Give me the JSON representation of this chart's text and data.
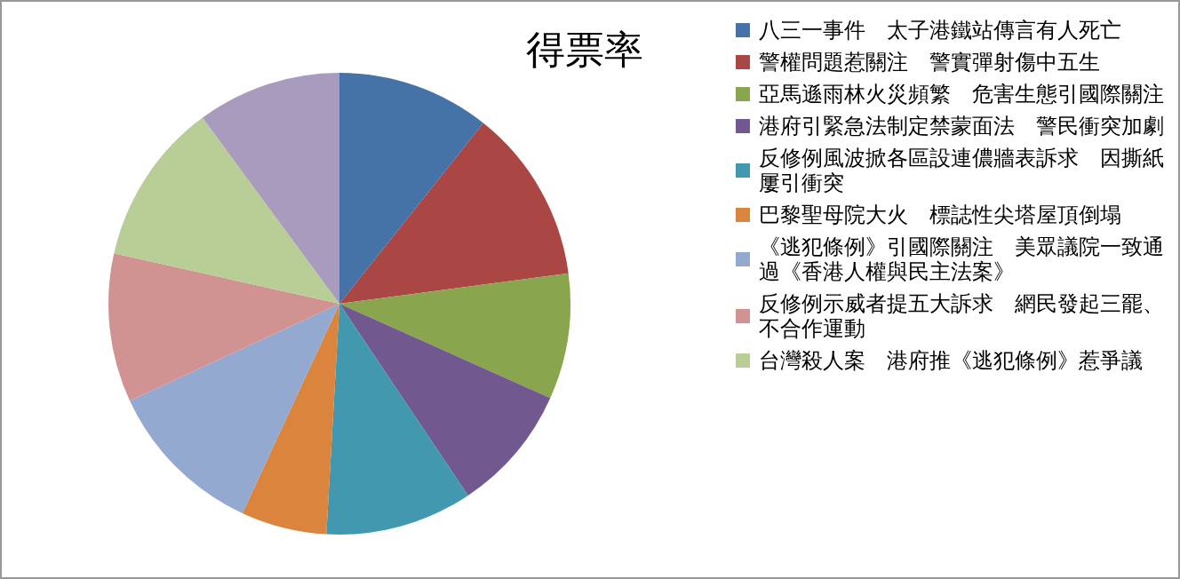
{
  "chart_data": {
    "type": "pie",
    "title": "得票率",
    "categories": [
      "八三一事件　太子港鐵站傳言有人死亡",
      "警權問題惹關注　警實彈射傷中五生",
      "亞馬遜雨林火災頻繁　危害生態引國際關注",
      "港府引緊急法制定禁蒙面法　警民衝突加劇",
      "反修例風波掀各區設連儂牆表訴求　因撕紙屢引衝突",
      "巴黎聖母院大火　標誌性尖塔屋頂倒塌",
      "《逃犯條例》引國際關注　美眾議院一致通過《香港人權與民主法案》",
      "反修例示威者提五大訴求　網民發起三罷、不合作運動",
      "台灣殺人案　港府推《逃犯條例》惹爭議",
      null
    ],
    "values": [
      10.7,
      12.2,
      8.8,
      8.9,
      10.3,
      6.0,
      11.2,
      10.4,
      11.4,
      10.1
    ],
    "colors": [
      "#4572a7",
      "#aa4643",
      "#89a54e",
      "#71588f",
      "#4198af",
      "#db843d",
      "#93a9cf",
      "#d19392",
      "#b9cd96",
      "#a99bbd"
    ],
    "legend": "right"
  }
}
